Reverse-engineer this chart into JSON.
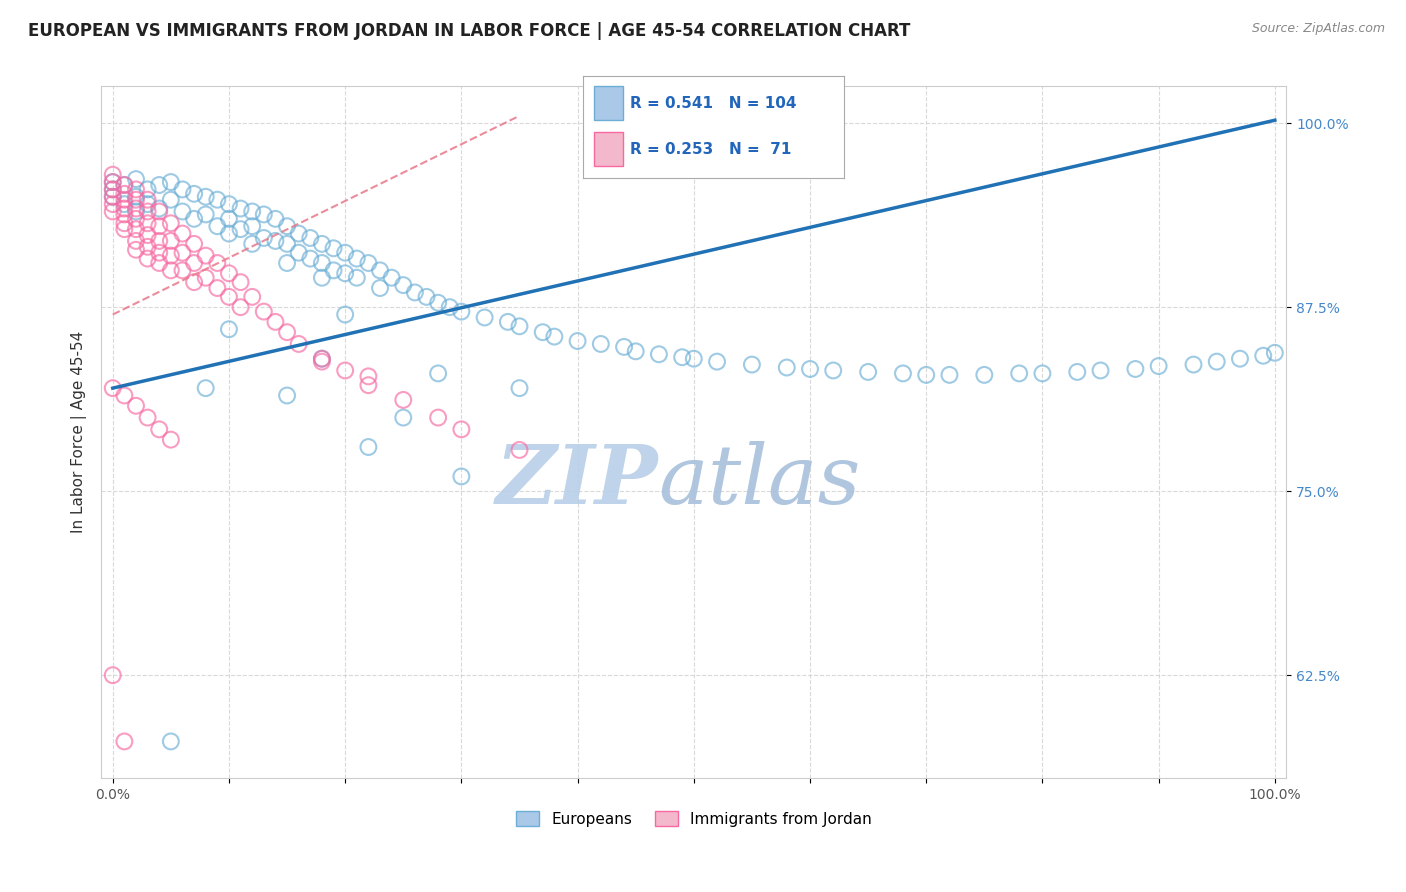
{
  "title": "EUROPEAN VS IMMIGRANTS FROM JORDAN IN LABOR FORCE | AGE 45-54 CORRELATION CHART",
  "source": "Source: ZipAtlas.com",
  "ylabel": "In Labor Force | Age 45-54",
  "xlim": [
    -0.01,
    1.01
  ],
  "ylim": [
    0.555,
    1.025
  ],
  "xticks": [
    0.0,
    0.1,
    0.2,
    0.3,
    0.4,
    0.5,
    0.6,
    0.7,
    0.8,
    0.9,
    1.0
  ],
  "xticklabels": [
    "0.0%",
    "",
    "",
    "",
    "",
    "",
    "",
    "",
    "",
    "",
    "100.0%"
  ],
  "yticks": [
    0.625,
    0.75,
    0.875,
    1.0
  ],
  "yticklabels": [
    "62.5%",
    "75.0%",
    "87.5%",
    "100.0%"
  ],
  "legend_r_blue": "0.541",
  "legend_n_blue": "104",
  "legend_r_pink": "0.253",
  "legend_n_pink": "71",
  "legend_label_blue": "Europeans",
  "legend_label_pink": "Immigrants from Jordan",
  "blue_color": "#6baed6",
  "pink_color": "#f768a1",
  "blue_line_color": "#2171b5",
  "pink_line_color": "#e8788a",
  "watermark": "ZIPatlas",
  "watermark_color": "#cde0f0",
  "background_color": "#ffffff",
  "grid_color": "#d0d0d0",
  "title_fontsize": 12,
  "axis_fontsize": 11,
  "tick_fontsize": 10,
  "blue_scatter_x": [
    0.0,
    0.0,
    0.0,
    0.01,
    0.01,
    0.02,
    0.02,
    0.02,
    0.03,
    0.03,
    0.04,
    0.04,
    0.05,
    0.05,
    0.06,
    0.06,
    0.07,
    0.07,
    0.08,
    0.08,
    0.09,
    0.09,
    0.1,
    0.1,
    0.1,
    0.11,
    0.11,
    0.12,
    0.12,
    0.12,
    0.13,
    0.13,
    0.14,
    0.14,
    0.15,
    0.15,
    0.15,
    0.16,
    0.16,
    0.17,
    0.17,
    0.18,
    0.18,
    0.18,
    0.19,
    0.19,
    0.2,
    0.2,
    0.21,
    0.21,
    0.22,
    0.23,
    0.23,
    0.24,
    0.25,
    0.26,
    0.27,
    0.28,
    0.29,
    0.3,
    0.32,
    0.34,
    0.35,
    0.37,
    0.38,
    0.4,
    0.42,
    0.44,
    0.45,
    0.47,
    0.49,
    0.5,
    0.52,
    0.55,
    0.58,
    0.6,
    0.62,
    0.65,
    0.68,
    0.7,
    0.72,
    0.75,
    0.78,
    0.8,
    0.83,
    0.85,
    0.88,
    0.9,
    0.93,
    0.95,
    0.97,
    0.99,
    1.0,
    0.3,
    0.35,
    0.22,
    0.18,
    0.25,
    0.28,
    0.2,
    0.15,
    0.1,
    0.08,
    0.05
  ],
  "blue_scatter_y": [
    0.96,
    0.955,
    0.95,
    0.958,
    0.945,
    0.962,
    0.95,
    0.94,
    0.955,
    0.945,
    0.958,
    0.942,
    0.96,
    0.948,
    0.955,
    0.94,
    0.952,
    0.935,
    0.95,
    0.938,
    0.948,
    0.93,
    0.945,
    0.935,
    0.925,
    0.942,
    0.928,
    0.94,
    0.93,
    0.918,
    0.938,
    0.922,
    0.935,
    0.92,
    0.93,
    0.918,
    0.905,
    0.925,
    0.912,
    0.922,
    0.908,
    0.918,
    0.905,
    0.895,
    0.915,
    0.9,
    0.912,
    0.898,
    0.908,
    0.895,
    0.905,
    0.9,
    0.888,
    0.895,
    0.89,
    0.885,
    0.882,
    0.878,
    0.875,
    0.872,
    0.868,
    0.865,
    0.862,
    0.858,
    0.855,
    0.852,
    0.85,
    0.848,
    0.845,
    0.843,
    0.841,
    0.84,
    0.838,
    0.836,
    0.834,
    0.833,
    0.832,
    0.831,
    0.83,
    0.829,
    0.829,
    0.829,
    0.83,
    0.83,
    0.831,
    0.832,
    0.833,
    0.835,
    0.836,
    0.838,
    0.84,
    0.842,
    0.844,
    0.76,
    0.82,
    0.78,
    0.84,
    0.8,
    0.83,
    0.87,
    0.815,
    0.86,
    0.82,
    0.58
  ],
  "pink_scatter_x": [
    0.0,
    0.0,
    0.0,
    0.0,
    0.0,
    0.0,
    0.01,
    0.01,
    0.01,
    0.01,
    0.01,
    0.01,
    0.01,
    0.02,
    0.02,
    0.02,
    0.02,
    0.02,
    0.02,
    0.02,
    0.03,
    0.03,
    0.03,
    0.03,
    0.03,
    0.03,
    0.04,
    0.04,
    0.04,
    0.04,
    0.04,
    0.05,
    0.05,
    0.05,
    0.05,
    0.06,
    0.06,
    0.06,
    0.07,
    0.07,
    0.07,
    0.08,
    0.08,
    0.09,
    0.09,
    0.1,
    0.1,
    0.11,
    0.11,
    0.12,
    0.13,
    0.14,
    0.15,
    0.16,
    0.18,
    0.2,
    0.22,
    0.25,
    0.28,
    0.3,
    0.35,
    0.18,
    0.22,
    0.0,
    0.01,
    0.02,
    0.03,
    0.04,
    0.05,
    0.0,
    0.01
  ],
  "pink_scatter_y": [
    0.965,
    0.96,
    0.955,
    0.95,
    0.945,
    0.94,
    0.958,
    0.952,
    0.948,
    0.942,
    0.938,
    0.932,
    0.928,
    0.955,
    0.948,
    0.942,
    0.935,
    0.928,
    0.92,
    0.914,
    0.948,
    0.94,
    0.932,
    0.924,
    0.916,
    0.908,
    0.94,
    0.93,
    0.92,
    0.912,
    0.905,
    0.932,
    0.92,
    0.91,
    0.9,
    0.925,
    0.912,
    0.9,
    0.918,
    0.905,
    0.892,
    0.91,
    0.895,
    0.905,
    0.888,
    0.898,
    0.882,
    0.892,
    0.875,
    0.882,
    0.872,
    0.865,
    0.858,
    0.85,
    0.84,
    0.832,
    0.822,
    0.812,
    0.8,
    0.792,
    0.778,
    0.838,
    0.828,
    0.82,
    0.815,
    0.808,
    0.8,
    0.792,
    0.785,
    0.625,
    0.58
  ],
  "blue_line_x0": 0.0,
  "blue_line_x1": 1.0,
  "blue_line_y0": 0.82,
  "blue_line_y1": 1.002,
  "pink_line_x0": 0.0,
  "pink_line_x1": 0.35,
  "pink_line_y0": 0.87,
  "pink_line_y1": 1.005
}
